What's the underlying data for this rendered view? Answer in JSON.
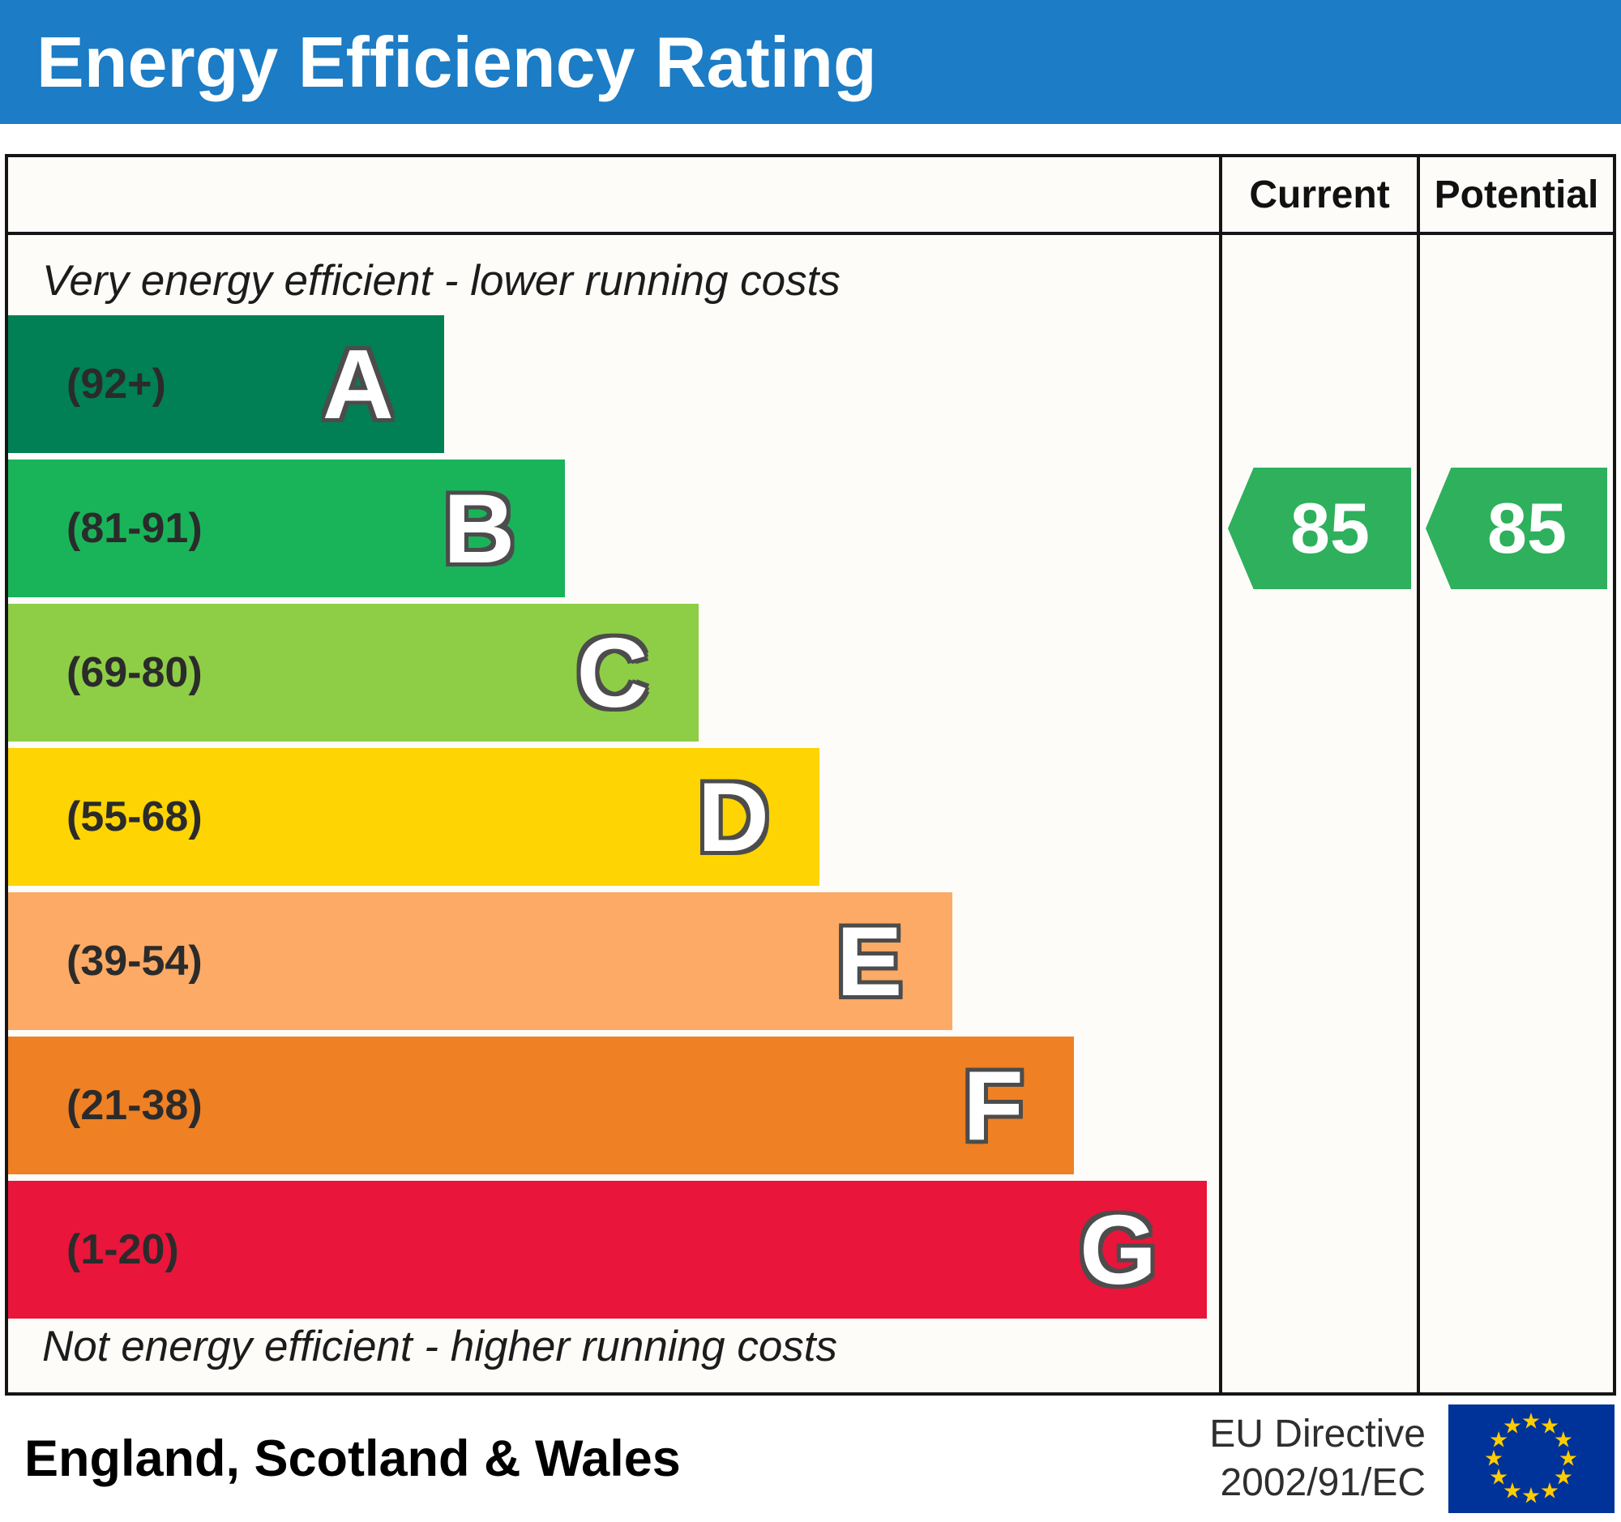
{
  "header": {
    "title": "Energy Efficiency Rating",
    "bg_color": "#1c7cc5"
  },
  "columns": {
    "current_label": "Current",
    "potential_label": "Potential"
  },
  "notes": {
    "top": "Very energy efficient - lower running costs",
    "bottom": "Not energy efficient - higher running costs"
  },
  "bands": [
    {
      "letter": "A",
      "range": "(92+)",
      "color": "#008054",
      "width_pct": 36
    },
    {
      "letter": "B",
      "range": "(81-91)",
      "color": "#19b459",
      "width_pct": 46
    },
    {
      "letter": "C",
      "range": "(69-80)",
      "color": "#8dce46",
      "width_pct": 57
    },
    {
      "letter": "D",
      "range": "(55-68)",
      "color": "#fed402",
      "width_pct": 67
    },
    {
      "letter": "E",
      "range": "(39-54)",
      "color": "#fcaa65",
      "width_pct": 78
    },
    {
      "letter": "F",
      "range": "(21-38)",
      "color": "#ef8023",
      "width_pct": 88
    },
    {
      "letter": "G",
      "range": "(1-20)",
      "color": "#e9153b",
      "width_pct": 99
    }
  ],
  "ratings": {
    "current": {
      "value": "85",
      "color": "#2eb05c",
      "band": "B"
    },
    "potential": {
      "value": "85",
      "color": "#2eb05c",
      "band": "B"
    }
  },
  "footer": {
    "region": "England, Scotland & Wales",
    "directive_line1": "EU Directive",
    "directive_line2": "2002/91/EC",
    "flag": {
      "bg": "#003399",
      "star_color": "#ffcc00"
    }
  },
  "chart_data": {
    "type": "bar",
    "title": "Energy Efficiency Rating",
    "categories": [
      "A",
      "B",
      "C",
      "D",
      "E",
      "F",
      "G"
    ],
    "band_ranges": [
      "92+",
      "81-91",
      "69-80",
      "55-68",
      "39-54",
      "21-38",
      "1-20"
    ],
    "band_colors": [
      "#008054",
      "#19b459",
      "#8dce46",
      "#fed402",
      "#fcaa65",
      "#ef8023",
      "#e9153b"
    ],
    "bar_widths_pct": [
      36,
      46,
      57,
      67,
      78,
      88,
      99
    ],
    "series": [
      {
        "name": "Current",
        "value": 85,
        "band": "B"
      },
      {
        "name": "Potential",
        "value": 85,
        "band": "B"
      }
    ],
    "annotations": [
      "Very energy efficient - lower running costs",
      "Not energy efficient - higher running costs"
    ],
    "region": "England, Scotland & Wales",
    "directive": "EU Directive 2002/91/EC",
    "legend_position": "none",
    "grid": false
  }
}
